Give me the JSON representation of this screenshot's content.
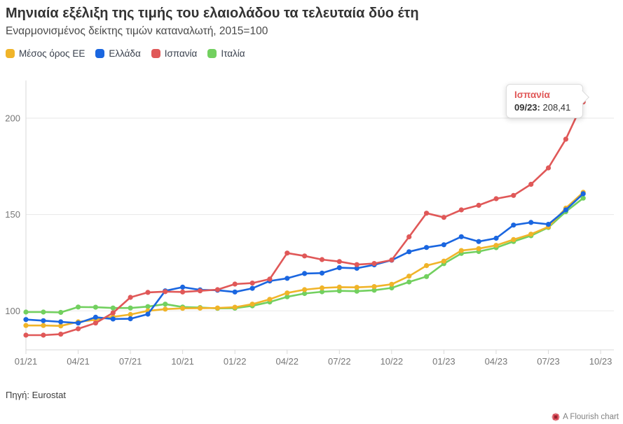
{
  "header": {
    "title": "Μηνιαία εξέλιξη της τιμής του ελαιολάδου τα τελευταία δύο έτη",
    "subtitle": "Εναρμονισμένος δείκτης τιμών καταναλωτή, 2015=100"
  },
  "source": {
    "text": "Πηγή: Eurostat"
  },
  "footer": {
    "credit": "A Flourish chart"
  },
  "colors": {
    "eu_average": "#f0b429",
    "greece": "#1a66e0",
    "spain": "#e05858",
    "italy": "#72d05f",
    "grid": "#e8e8e8",
    "axis": "#d9d9d9",
    "tick_text": "#767676"
  },
  "chart_data": {
    "type": "line",
    "title": "Μηνιαία εξέλιξη της τιμής του ελαιολάδου τα τελευταία δύο έτη",
    "subtitle": "Εναρμονισμένος δείκτης τιμών καταναλωτή, 2015=100",
    "x": [
      "01/21",
      "02/21",
      "03/21",
      "04/21",
      "05/21",
      "06/21",
      "07/21",
      "08/21",
      "09/21",
      "10/21",
      "11/21",
      "12/21",
      "01/22",
      "02/22",
      "03/22",
      "04/22",
      "05/22",
      "06/22",
      "07/22",
      "08/22",
      "09/22",
      "10/22",
      "11/22",
      "12/22",
      "01/23",
      "02/23",
      "03/23",
      "04/23",
      "05/23",
      "06/23",
      "07/23",
      "08/23",
      "09/23"
    ],
    "x_ticks": [
      "01/21",
      "04/21",
      "07/21",
      "10/21",
      "01/22",
      "04/22",
      "07/22",
      "10/22",
      "01/23",
      "04/23",
      "07/23",
      "10/23"
    ],
    "y_ticks": [
      100,
      150,
      200
    ],
    "ylim": [
      78,
      220
    ],
    "grid": "horizontal",
    "legend_position": "top-left",
    "series": [
      {
        "name": "Μέσος όρος ΕΕ",
        "key": "eu_average",
        "color": "#f0b429",
        "values": [
          92.4,
          92.4,
          92.2,
          94.3,
          95.4,
          96.9,
          98.1,
          100.0,
          100.9,
          101.3,
          101.4,
          101.5,
          101.9,
          103.5,
          106.0,
          109.3,
          111.0,
          111.9,
          112.3,
          112.2,
          112.6,
          113.8,
          118.0,
          123.5,
          125.8,
          131.3,
          132.3,
          134.0,
          137.0,
          139.8,
          143.6,
          153.3,
          161.5
        ]
      },
      {
        "name": "Ελλάδα",
        "key": "greece",
        "color": "#1a66e0",
        "values": [
          95.5,
          94.9,
          94.3,
          93.7,
          96.7,
          95.8,
          95.9,
          98.3,
          110.4,
          112.3,
          110.9,
          110.7,
          109.8,
          111.7,
          115.5,
          116.9,
          119.4,
          119.6,
          122.4,
          122.1,
          123.9,
          126.3,
          130.7,
          132.9,
          134.3,
          138.5,
          136.0,
          137.7,
          144.5,
          145.9,
          144.9,
          152.4,
          160.8
        ]
      },
      {
        "name": "Ισπανία",
        "key": "spain",
        "color": "#e05858",
        "values": [
          87.4,
          87.4,
          87.9,
          90.7,
          93.7,
          99.0,
          107.0,
          109.6,
          110.0,
          109.8,
          110.4,
          111.0,
          113.9,
          114.4,
          116.5,
          130.0,
          128.5,
          126.6,
          125.6,
          124.0,
          124.6,
          126.4,
          138.4,
          150.7,
          148.5,
          152.4,
          154.8,
          158.2,
          159.9,
          165.7,
          174.2,
          189.1,
          208.41
        ]
      },
      {
        "name": "Ιταλία",
        "key": "italy",
        "color": "#72d05f",
        "values": [
          99.4,
          99.4,
          99.2,
          102.0,
          101.9,
          101.5,
          101.5,
          102.2,
          103.5,
          102.0,
          101.7,
          101.3,
          101.4,
          102.6,
          104.6,
          107.3,
          109.0,
          109.9,
          110.4,
          110.2,
          110.7,
          111.9,
          115.0,
          117.8,
          124.5,
          129.8,
          130.8,
          132.8,
          136.0,
          139.0,
          143.3,
          151.5,
          158.5
        ]
      }
    ],
    "annotation": {
      "series": "Ισπανία",
      "time_label": "09/23:",
      "value_display": "208,41",
      "value": 208.41
    }
  },
  "legend": {
    "items": [
      {
        "label": "Μέσος όρος ΕΕ",
        "color": "#f0b429"
      },
      {
        "label": "Ελλάδα",
        "color": "#1a66e0"
      },
      {
        "label": "Ισπανία",
        "color": "#e05858"
      },
      {
        "label": "Ιταλία",
        "color": "#72d05f"
      }
    ]
  }
}
